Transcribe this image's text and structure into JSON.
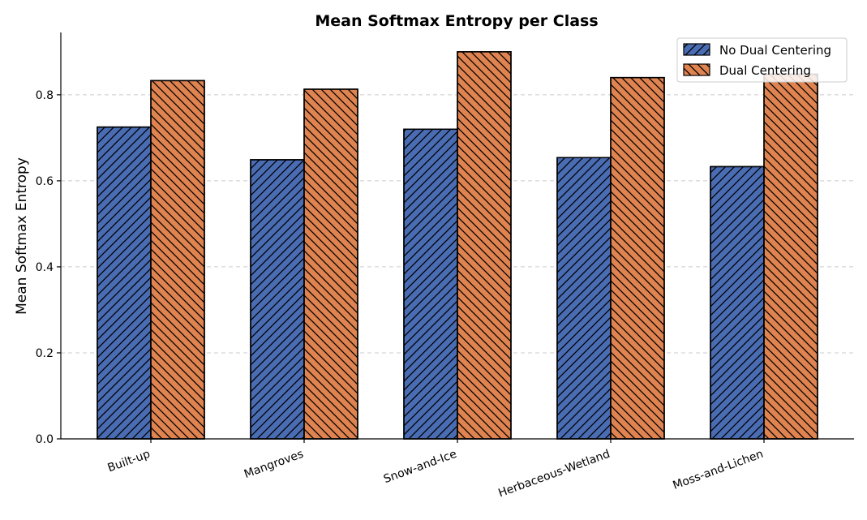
{
  "chart_data": {
    "type": "bar",
    "title": "Mean Softmax Entropy per Class",
    "xlabel": "",
    "ylabel": "Mean Softmax Entropy",
    "categories": [
      "Built-up",
      "Mangroves",
      "Snow-and-Ice",
      "Herbaceous-Wetland",
      "Moss-and-Lichen"
    ],
    "series": [
      {
        "name": "No Dual Centering",
        "values": [
          0.725,
          0.649,
          0.72,
          0.654,
          0.633
        ],
        "color": "#4a6cb3",
        "hatch": "forward-diagonal"
      },
      {
        "name": "Dual Centering",
        "values": [
          0.833,
          0.813,
          0.9,
          0.84,
          0.848
        ],
        "color": "#df8350",
        "hatch": "back-diagonal"
      }
    ],
    "ylim": [
      0,
      0.945
    ],
    "yticks": [
      0.0,
      0.2,
      0.4,
      0.6,
      0.8
    ],
    "ytick_labels": [
      "0.0",
      "0.2",
      "0.4",
      "0.6",
      "0.8"
    ],
    "grid": "y-dashed",
    "legend_position": "top-right"
  }
}
